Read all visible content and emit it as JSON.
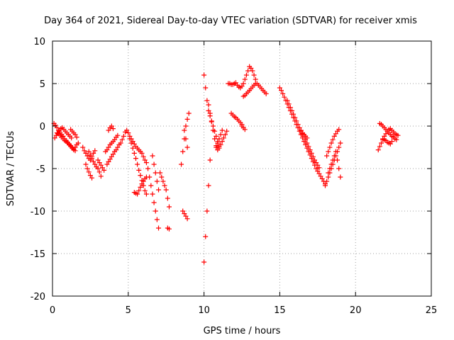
{
  "chart_data": {
    "type": "scatter",
    "title": "Day 364 of 2021, Sidereal Day-to-day VTEC variation (SDTVAR) for receiver xmis",
    "xlabel": "GPS time / hours",
    "ylabel": "SDTVAR / TECUs",
    "xlim": [
      0,
      25
    ],
    "ylim": [
      -20,
      10
    ],
    "x_ticks": [
      "0",
      "5",
      "10",
      "15",
      "20",
      "25"
    ],
    "y_ticks": [
      "10",
      "5",
      "0",
      "-5",
      "-10",
      "-15",
      "-20"
    ],
    "grid": true,
    "marker": "+",
    "series": [
      {
        "name": "SDTVAR",
        "color": "#ff0000",
        "x": [
          0.1,
          0.2,
          0.3,
          0.4,
          0.5,
          0.6,
          0.7,
          0.8,
          0.9,
          1.0,
          1.1,
          1.2,
          1.3,
          1.4,
          1.5,
          1.6,
          1.7,
          0.15,
          0.25,
          0.35,
          0.45,
          0.55,
          0.65,
          0.75,
          0.85,
          0.95,
          1.05,
          1.15,
          1.25,
          0.3,
          0.4,
          0.5,
          0.6,
          0.7,
          0.8,
          0.9,
          1.0,
          1.1,
          1.2,
          1.3,
          1.4,
          1.5,
          1.2,
          1.3,
          1.4,
          1.5,
          1.6,
          2.0,
          2.1,
          2.2,
          2.3,
          2.4,
          2.5,
          2.6,
          2.7,
          2.8,
          2.2,
          2.3,
          2.4,
          2.5,
          2.6,
          2.4,
          2.5,
          2.6,
          2.7,
          2.8,
          2.9,
          3.0,
          3.1,
          3.2,
          3.0,
          3.1,
          3.2,
          3.3,
          3.4,
          3.5,
          3.6,
          3.7,
          3.8,
          3.9,
          4.0,
          4.1,
          4.2,
          4.3,
          3.6,
          3.7,
          3.8,
          3.9,
          4.0,
          4.1,
          4.2,
          4.3,
          4.4,
          4.5,
          4.6,
          4.7,
          3.7,
          3.8,
          3.9,
          4.0,
          4.8,
          4.9,
          5.0,
          5.1,
          5.2,
          5.3,
          5.4,
          5.5,
          5.6,
          5.7,
          5.8,
          5.9,
          6.0,
          6.1,
          6.2,
          5.1,
          5.2,
          5.3,
          5.4,
          5.5,
          5.6,
          5.7,
          5.8,
          5.9,
          6.0,
          6.1,
          6.2,
          5.4,
          5.5,
          5.6,
          5.7,
          5.8,
          5.9,
          6.0,
          6.1,
          6.2,
          6.3,
          6.4,
          6.5,
          6.6,
          6.7,
          6.8,
          6.9,
          7.0,
          6.6,
          6.7,
          6.8,
          6.9,
          7.0,
          7.1,
          7.2,
          7.3,
          7.4,
          7.5,
          7.6,
          7.7,
          7.6,
          7.7,
          8.5,
          8.6,
          8.7,
          8.8,
          8.9,
          9.0,
          8.6,
          8.7,
          8.8,
          8.9,
          8.7,
          8.8,
          8.9,
          10.0,
          10.1,
          10.2,
          10.3,
          10.4,
          10.0,
          10.1,
          10.2,
          10.3,
          10.4,
          10.5,
          10.6,
          10.7,
          10.8,
          10.9,
          11.0,
          10.3,
          10.4,
          10.5,
          10.6,
          10.7,
          10.8,
          10.9,
          11.0,
          11.1,
          11.2,
          11.3,
          11.4,
          11.5,
          10.8,
          10.9,
          11.0,
          11.1,
          11.2,
          11.6,
          11.7,
          11.8,
          11.9,
          12.0,
          12.1,
          12.2,
          12.3,
          12.4,
          12.5,
          12.6,
          12.7,
          12.8,
          12.9,
          13.0,
          13.1,
          13.2,
          13.3,
          13.4,
          13.5,
          13.6,
          13.7,
          13.8,
          13.9,
          14.0,
          14.1,
          11.8,
          11.9,
          12.0,
          12.1,
          12.2,
          12.3,
          12.4,
          12.5,
          12.6,
          12.7,
          12.8,
          12.9,
          13.0,
          13.1,
          13.2,
          13.3,
          13.4,
          12.5,
          12.6,
          12.7,
          15.0,
          15.1,
          15.2,
          15.3,
          15.4,
          15.5,
          15.6,
          15.7,
          15.8,
          15.9,
          16.0,
          16.1,
          16.2,
          16.3,
          16.4,
          16.5,
          16.6,
          16.7,
          16.8,
          16.9,
          17.0,
          17.1,
          17.2,
          17.3,
          17.4,
          17.5,
          17.6,
          17.7,
          17.8,
          17.9,
          18.0,
          15.5,
          15.6,
          15.7,
          15.8,
          15.9,
          16.0,
          16.1,
          16.2,
          16.3,
          16.4,
          16.5,
          16.6,
          16.7,
          16.8,
          16.4,
          16.5,
          16.6,
          16.7,
          16.8,
          16.9,
          17.0,
          17.1,
          17.2,
          17.3,
          17.4,
          17.5,
          17.6,
          18.0,
          18.1,
          18.2,
          18.3,
          18.4,
          18.5,
          18.6,
          18.7,
          18.8,
          18.9,
          19.0,
          18.1,
          18.2,
          18.3,
          18.4,
          18.5,
          18.6,
          18.7,
          18.8,
          18.9,
          18.2,
          18.3,
          18.4,
          18.5,
          18.6,
          18.7,
          18.8,
          18.9,
          19.0,
          21.5,
          21.6,
          21.7,
          21.8,
          21.9,
          22.0,
          22.1,
          22.2,
          22.3,
          22.4,
          22.5,
          22.6,
          22.7,
          22.8,
          21.6,
          21.7,
          21.8,
          21.9,
          22.0,
          22.1,
          22.2,
          22.3,
          22.4,
          22.5,
          22.6,
          22.7,
          21.8,
          21.9,
          22.0,
          22.1,
          22.2,
          22.3,
          22.4
        ],
        "y": [
          0.3,
          0.1,
          -0.2,
          -0.5,
          -0.8,
          -1.0,
          -1.2,
          -1.5,
          -1.7,
          -1.9,
          -2.1,
          -2.4,
          -2.6,
          -2.8,
          -2.5,
          -2.2,
          -2.0,
          -1.4,
          -1.1,
          -0.9,
          -0.6,
          -0.3,
          -0.2,
          -0.4,
          -0.6,
          -0.8,
          -1.0,
          -1.2,
          -1.4,
          -0.8,
          -0.9,
          -1.1,
          -1.3,
          -1.5,
          -1.7,
          -1.8,
          -2.0,
          -2.2,
          -2.3,
          -2.5,
          -2.7,
          -2.9,
          -0.4,
          -0.6,
          -0.8,
          -1.0,
          -1.3,
          -2.5,
          -2.9,
          -3.2,
          -3.5,
          -3.8,
          -4.0,
          -3.6,
          -3.2,
          -2.9,
          -4.5,
          -5.0,
          -5.4,
          -5.8,
          -6.1,
          -3.0,
          -3.4,
          -3.8,
          -4.2,
          -4.5,
          -4.8,
          -5.0,
          -5.4,
          -5.9,
          -4.0,
          -4.3,
          -4.6,
          -4.9,
          -5.2,
          -3.0,
          -2.8,
          -2.5,
          -2.2,
          -2.0,
          -1.8,
          -1.6,
          -1.3,
          -1.1,
          -4.5,
          -4.2,
          -3.9,
          -3.6,
          -3.3,
          -3.0,
          -2.8,
          -2.5,
          -2.2,
          -2.0,
          -1.6,
          -1.2,
          -0.5,
          -0.2,
          0.0,
          -0.3,
          -0.7,
          -0.5,
          -0.8,
          -1.2,
          -1.5,
          -1.8,
          -2.1,
          -2.4,
          -2.6,
          -2.8,
          -3.0,
          -3.2,
          -3.6,
          -4.0,
          -4.3,
          -1.5,
          -2.0,
          -2.6,
          -3.2,
          -3.8,
          -4.5,
          -5.2,
          -5.8,
          -6.4,
          -7.0,
          -7.6,
          -8.0,
          -7.8,
          -7.9,
          -8.0,
          -7.6,
          -7.2,
          -6.8,
          -6.5,
          -6.2,
          -6.0,
          -5.0,
          -6.0,
          -7.0,
          -8.0,
          -9.0,
          -10.0,
          -11.0,
          -12.0,
          -3.5,
          -4.5,
          -5.5,
          -6.5,
          -7.5,
          -5.5,
          -6.0,
          -6.5,
          -7.0,
          -7.5,
          -8.5,
          -9.5,
          -12.0,
          -12.1,
          -4.5,
          -3.0,
          -1.5,
          0.0,
          0.8,
          1.5,
          -10.0,
          -10.3,
          -10.6,
          -10.9,
          -0.5,
          -1.5,
          -2.5,
          -16.0,
          -13.0,
          -10.0,
          -7.0,
          -4.0,
          6.0,
          4.5,
          3.0,
          1.8,
          1.2,
          0.6,
          0.0,
          -0.6,
          -1.2,
          -1.8,
          -2.4,
          2.5,
          1.5,
          0.5,
          -0.5,
          -1.5,
          -2.3,
          -2.8,
          -2.6,
          -2.2,
          -1.8,
          -1.4,
          -1.0,
          -0.6,
          -2.5,
          -2.0,
          -1.5,
          -1.0,
          -0.5,
          5.0,
          5.0,
          4.9,
          4.9,
          5.0,
          5.1,
          4.8,
          4.6,
          4.5,
          4.7,
          5.0,
          5.5,
          6.0,
          6.5,
          7.0,
          6.8,
          6.5,
          6.0,
          5.5,
          5.0,
          4.8,
          4.6,
          4.4,
          4.2,
          4.0,
          3.8,
          1.5,
          1.3,
          1.1,
          1.0,
          0.8,
          0.6,
          0.4,
          0.2,
          3.5,
          3.6,
          3.8,
          4.0,
          4.2,
          4.4,
          4.6,
          4.8,
          5.0,
          0.0,
          -0.2,
          -0.4,
          4.5,
          4.2,
          3.8,
          3.4,
          3.0,
          2.6,
          2.2,
          1.8,
          1.4,
          1.0,
          0.6,
          0.2,
          -0.2,
          -0.6,
          -1.0,
          -1.4,
          -1.8,
          -2.2,
          -2.6,
          -3.0,
          -3.4,
          -3.8,
          -4.2,
          -4.6,
          -5.0,
          -5.3,
          -5.6,
          -5.9,
          -6.2,
          -6.5,
          -6.8,
          3.0,
          2.6,
          2.2,
          1.8,
          1.4,
          1.0,
          0.6,
          0.2,
          -0.2,
          -0.5,
          -0.8,
          -1.0,
          -1.2,
          -1.4,
          -0.6,
          -0.9,
          -1.2,
          -1.6,
          -2.0,
          -2.4,
          -2.8,
          -3.2,
          -3.6,
          -4.0,
          -4.3,
          -4.6,
          -4.9,
          -7.0,
          -6.5,
          -6.0,
          -5.5,
          -5.0,
          -4.5,
          -4.0,
          -3.5,
          -3.0,
          -2.5,
          -2.0,
          -3.5,
          -3.0,
          -2.5,
          -2.0,
          -1.6,
          -1.2,
          -0.9,
          -0.6,
          -0.4,
          -5.5,
          -5.0,
          -4.5,
          -4.0,
          -3.5,
          -3.0,
          -4.0,
          -5.0,
          -6.0,
          -2.8,
          -2.4,
          -2.0,
          -1.6,
          -1.2,
          -0.9,
          -0.6,
          -0.4,
          -0.3,
          -0.5,
          -0.7,
          -0.9,
          -1.0,
          -1.1,
          0.3,
          0.2,
          0.0,
          -0.2,
          -0.4,
          -0.6,
          -0.8,
          -1.0,
          -1.2,
          -1.3,
          -1.5,
          -1.6,
          -1.5,
          -1.6,
          -1.7,
          -1.9,
          -2.0,
          -2.1,
          -1.8
        ]
      }
    ]
  }
}
